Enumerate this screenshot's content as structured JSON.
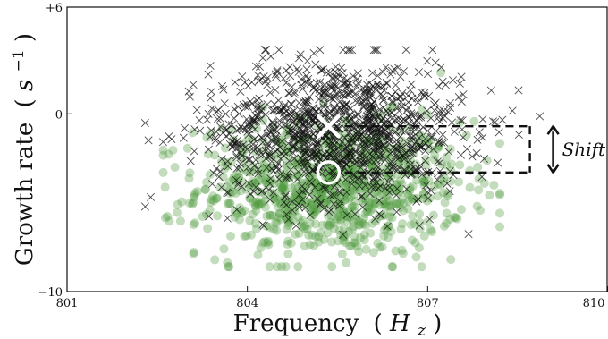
{
  "chart_data": {
    "type": "scatter",
    "xlabel": {
      "main": "Frequency",
      "open": "(",
      "var": "H",
      "sub": "z",
      "close": ")"
    },
    "ylabel": {
      "main": "Growth rate",
      "open": "(",
      "var": "s",
      "sup": "−1",
      "close": ")"
    },
    "xlim": [
      801,
      810
    ],
    "ylim": [
      -10,
      6
    ],
    "x_ticks": [
      801,
      804,
      807,
      810
    ],
    "x_tick_labels": [
      "801",
      "804",
      "807",
      "810"
    ],
    "y_ticks": [
      6,
      0,
      -10
    ],
    "y_tick_labels": [
      "+6",
      "0",
      "−10"
    ],
    "grid": false,
    "legend": null,
    "markers": {
      "x_cross": {
        "x": 805.35,
        "y": -0.7
      },
      "circle": {
        "x": 805.35,
        "y": -3.3
      }
    },
    "annotation": {
      "text": "Shift",
      "upper_y": -0.7,
      "lower_y": -3.3,
      "x_end": 808.7
    },
    "series": [
      {
        "marker": "x",
        "color": "#111111",
        "n": 1200,
        "center": {
          "x": 805.5,
          "y": -1.0
        },
        "spread": {
          "x": 1.05,
          "y": 2.0
        },
        "x_range": [
          802.3,
          809.2
        ],
        "y_range": [
          -7.2,
          3.6
        ]
      },
      {
        "marker": "o",
        "color": "#4f9a3f",
        "n": 900,
        "center": {
          "x": 805.4,
          "y": -4.2
        },
        "spread": {
          "x": 1.1,
          "y": 1.9
        },
        "x_range": [
          802.6,
          808.2
        ],
        "y_range": [
          -8.6,
          2.8
        ]
      }
    ],
    "highlight_colors": {
      "marker": "#ffffff",
      "annotation": "#111111"
    }
  }
}
